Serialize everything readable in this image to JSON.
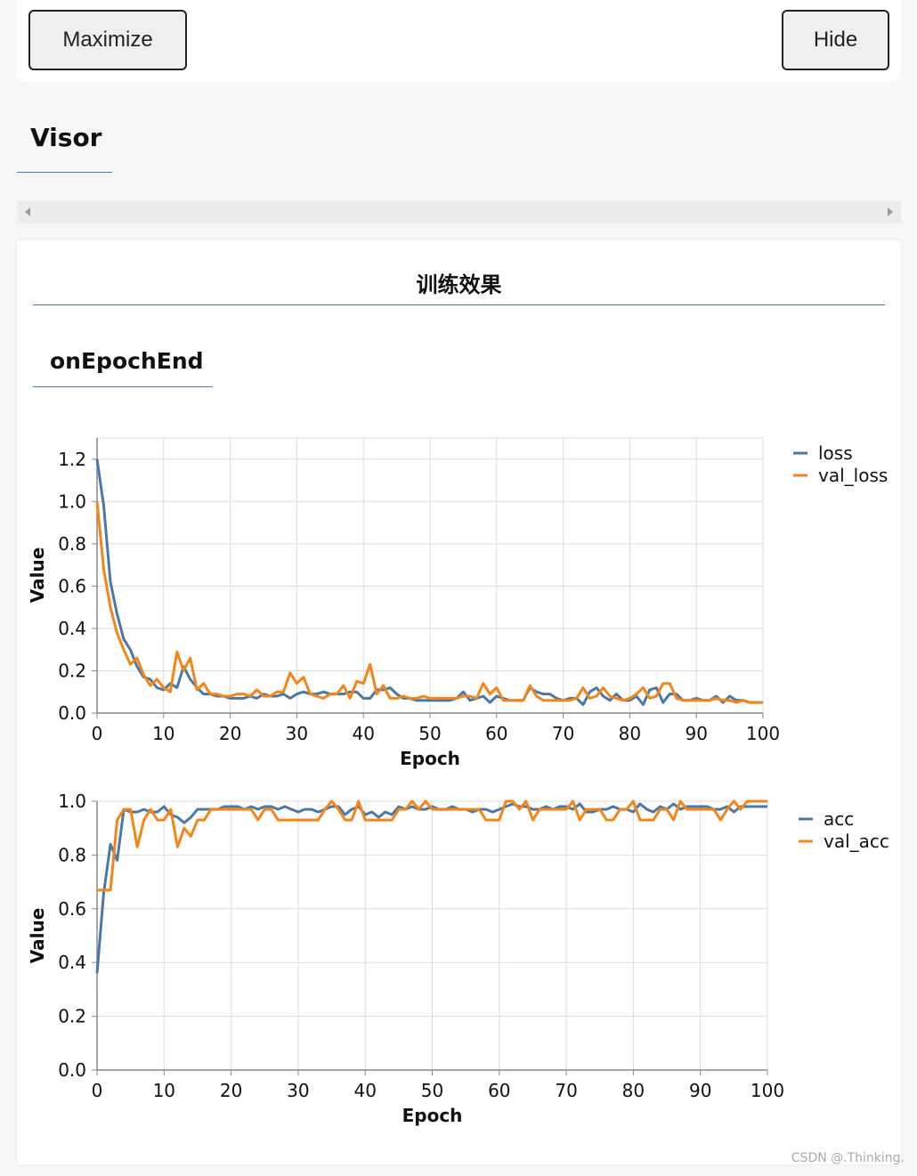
{
  "toolbar": {
    "maximize_label": "Maximize",
    "hide_label": "Hide"
  },
  "visor": {
    "title": "Visor"
  },
  "panel": {
    "title": "训练效果",
    "section": "onEpochEnd"
  },
  "watermark": "CSDN @.Thinking.",
  "colors": {
    "series1": "#4c78a8",
    "series2": "#f58518",
    "grid": "#dddddd",
    "axis": "#888888"
  },
  "chart_data": [
    {
      "type": "line",
      "title": "",
      "xlabel": "Epoch",
      "ylabel": "Value",
      "xlim": [
        0,
        100
      ],
      "ylim": [
        0,
        1.3
      ],
      "x_ticks": [
        0,
        10,
        20,
        30,
        40,
        50,
        60,
        70,
        80,
        90,
        100
      ],
      "y_ticks": [
        0.0,
        0.2,
        0.4,
        0.6,
        0.8,
        1.0,
        1.2
      ],
      "y_tick_labels": [
        "0.0",
        "0.2",
        "0.4",
        "0.6",
        "0.8",
        "1.0",
        "1.2"
      ],
      "grid": true,
      "legend": "top-right",
      "series": [
        {
          "name": "loss",
          "values": [
            1.2,
            0.98,
            0.62,
            0.47,
            0.35,
            0.3,
            0.22,
            0.17,
            0.16,
            0.12,
            0.11,
            0.14,
            0.12,
            0.22,
            0.16,
            0.12,
            0.09,
            0.09,
            0.08,
            0.08,
            0.07,
            0.07,
            0.07,
            0.08,
            0.07,
            0.09,
            0.08,
            0.08,
            0.09,
            0.07,
            0.09,
            0.1,
            0.09,
            0.09,
            0.1,
            0.09,
            0.09,
            0.09,
            0.1,
            0.1,
            0.07,
            0.07,
            0.11,
            0.11,
            0.12,
            0.09,
            0.07,
            0.07,
            0.06,
            0.06,
            0.06,
            0.06,
            0.06,
            0.06,
            0.07,
            0.1,
            0.06,
            0.07,
            0.08,
            0.05,
            0.08,
            0.07,
            0.06,
            0.06,
            0.06,
            0.12,
            0.1,
            0.09,
            0.09,
            0.07,
            0.06,
            0.07,
            0.07,
            0.04,
            0.1,
            0.12,
            0.08,
            0.06,
            0.09,
            0.06,
            0.06,
            0.08,
            0.04,
            0.11,
            0.12,
            0.05,
            0.09,
            0.09,
            0.06,
            0.06,
            0.07,
            0.06,
            0.06,
            0.08,
            0.05,
            0.08,
            0.06,
            0.06,
            0.05,
            0.05,
            0.05
          ]
        },
        {
          "name": "val_loss",
          "values": [
            1.0,
            0.68,
            0.5,
            0.38,
            0.3,
            0.23,
            0.26,
            0.18,
            0.13,
            0.16,
            0.12,
            0.1,
            0.29,
            0.2,
            0.26,
            0.11,
            0.14,
            0.09,
            0.09,
            0.08,
            0.08,
            0.09,
            0.09,
            0.08,
            0.11,
            0.08,
            0.08,
            0.1,
            0.1,
            0.19,
            0.14,
            0.17,
            0.09,
            0.08,
            0.07,
            0.09,
            0.09,
            0.13,
            0.07,
            0.15,
            0.14,
            0.23,
            0.09,
            0.13,
            0.07,
            0.07,
            0.08,
            0.07,
            0.07,
            0.08,
            0.07,
            0.07,
            0.07,
            0.07,
            0.07,
            0.08,
            0.08,
            0.07,
            0.14,
            0.09,
            0.12,
            0.06,
            0.06,
            0.06,
            0.06,
            0.13,
            0.08,
            0.06,
            0.06,
            0.06,
            0.06,
            0.06,
            0.07,
            0.12,
            0.07,
            0.08,
            0.12,
            0.08,
            0.07,
            0.06,
            0.07,
            0.09,
            0.12,
            0.07,
            0.08,
            0.14,
            0.14,
            0.07,
            0.06,
            0.06,
            0.06,
            0.06,
            0.06,
            0.07,
            0.06,
            0.06,
            0.05,
            0.06,
            0.05,
            0.05,
            0.05
          ]
        }
      ]
    },
    {
      "type": "line",
      "title": "",
      "xlabel": "Epoch",
      "ylabel": "Value",
      "xlim": [
        0,
        100
      ],
      "ylim": [
        0,
        1.0
      ],
      "x_ticks": [
        0,
        10,
        20,
        30,
        40,
        50,
        60,
        70,
        80,
        90,
        100
      ],
      "y_ticks": [
        0.0,
        0.2,
        0.4,
        0.6,
        0.8,
        1.0
      ],
      "y_tick_labels": [
        "0.0",
        "0.2",
        "0.4",
        "0.6",
        "0.8",
        "1.0"
      ],
      "grid": true,
      "legend": "top-right",
      "series": [
        {
          "name": "acc",
          "values": [
            0.36,
            0.66,
            0.84,
            0.78,
            0.97,
            0.96,
            0.96,
            0.97,
            0.96,
            0.96,
            0.98,
            0.95,
            0.94,
            0.92,
            0.94,
            0.97,
            0.97,
            0.97,
            0.97,
            0.98,
            0.98,
            0.98,
            0.97,
            0.98,
            0.97,
            0.98,
            0.98,
            0.97,
            0.98,
            0.97,
            0.96,
            0.97,
            0.97,
            0.96,
            0.97,
            0.98,
            0.98,
            0.95,
            0.97,
            0.98,
            0.95,
            0.96,
            0.94,
            0.96,
            0.95,
            0.98,
            0.97,
            0.98,
            0.97,
            0.97,
            0.98,
            0.97,
            0.97,
            0.98,
            0.97,
            0.97,
            0.96,
            0.97,
            0.97,
            0.96,
            0.97,
            0.98,
            0.99,
            0.98,
            0.98,
            0.97,
            0.97,
            0.98,
            0.97,
            0.98,
            0.98,
            0.97,
            0.99,
            0.96,
            0.96,
            0.97,
            0.97,
            0.98,
            0.97,
            0.97,
            0.96,
            0.99,
            0.97,
            0.96,
            0.98,
            0.97,
            0.99,
            0.97,
            0.98,
            0.98,
            0.98,
            0.98,
            0.97,
            0.97,
            0.98,
            0.96,
            0.98,
            0.98,
            0.98,
            0.98,
            0.98
          ]
        },
        {
          "name": "val_acc",
          "values": [
            0.67,
            0.67,
            0.67,
            0.93,
            0.97,
            0.97,
            0.83,
            0.93,
            0.97,
            0.93,
            0.93,
            0.97,
            0.83,
            0.9,
            0.87,
            0.93,
            0.93,
            0.97,
            0.97,
            0.97,
            0.97,
            0.97,
            0.97,
            0.97,
            0.93,
            0.97,
            0.97,
            0.93,
            0.93,
            0.93,
            0.93,
            0.93,
            0.93,
            0.93,
            0.97,
            1.0,
            0.97,
            0.93,
            0.93,
            1.0,
            0.93,
            0.93,
            0.93,
            0.93,
            0.93,
            0.97,
            0.97,
            1.0,
            0.97,
            1.0,
            0.97,
            0.97,
            0.97,
            0.97,
            0.97,
            0.97,
            0.97,
            0.97,
            0.93,
            0.93,
            0.93,
            1.0,
            1.0,
            0.97,
            1.0,
            0.93,
            0.97,
            0.97,
            0.97,
            0.97,
            0.97,
            1.0,
            0.93,
            0.97,
            0.97,
            0.97,
            0.93,
            0.93,
            0.97,
            0.97,
            1.0,
            0.93,
            0.93,
            0.93,
            0.97,
            0.97,
            0.93,
            1.0,
            0.97,
            0.97,
            0.97,
            0.97,
            0.97,
            0.93,
            0.97,
            1.0,
            0.97,
            1.0,
            1.0,
            1.0,
            1.0
          ]
        }
      ]
    }
  ]
}
